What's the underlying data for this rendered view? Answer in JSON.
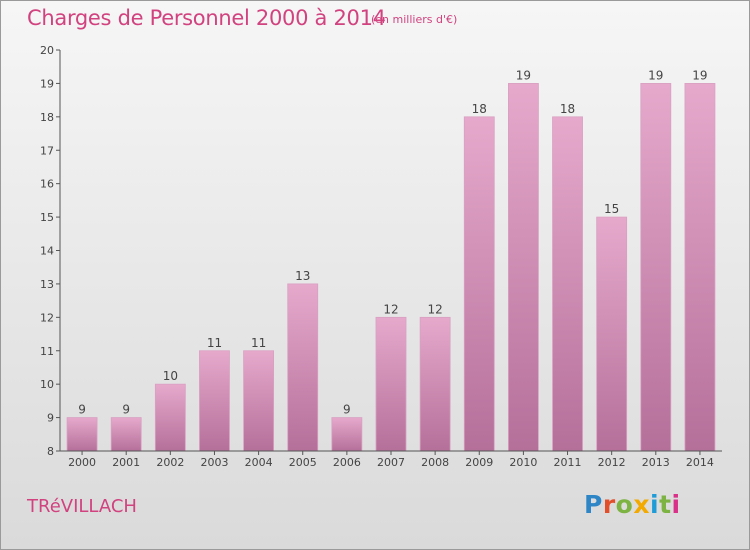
{
  "header": {
    "title": "Charges de Personnel 2000 à 2014",
    "subtitle": "(en milliers d'€)"
  },
  "footer": {
    "commune": "TRéVILLACH",
    "logo": [
      "P",
      "r",
      "o",
      "x",
      "i",
      "t",
      "i"
    ]
  },
  "colors": {
    "title": "#d1427f",
    "bar_top": "#e6a9cc",
    "bar_bottom": "#b5709a",
    "axis": "#555555"
  },
  "chart_data": {
    "type": "bar",
    "title": "Charges de Personnel 2000 à 2014",
    "subtitle": "(en milliers d'€)",
    "categories": [
      "2000",
      "2001",
      "2002",
      "2003",
      "2004",
      "2005",
      "2006",
      "2007",
      "2008",
      "2009",
      "2010",
      "2011",
      "2012",
      "2013",
      "2014"
    ],
    "values": [
      9,
      9,
      10,
      11,
      11,
      13,
      9,
      12,
      12,
      18,
      19,
      18,
      15,
      19,
      19
    ],
    "ylim": [
      8,
      20
    ],
    "yticks": [
      8,
      9,
      10,
      11,
      12,
      13,
      14,
      15,
      16,
      17,
      18,
      19,
      20
    ],
    "grid": false,
    "legend": "none"
  }
}
